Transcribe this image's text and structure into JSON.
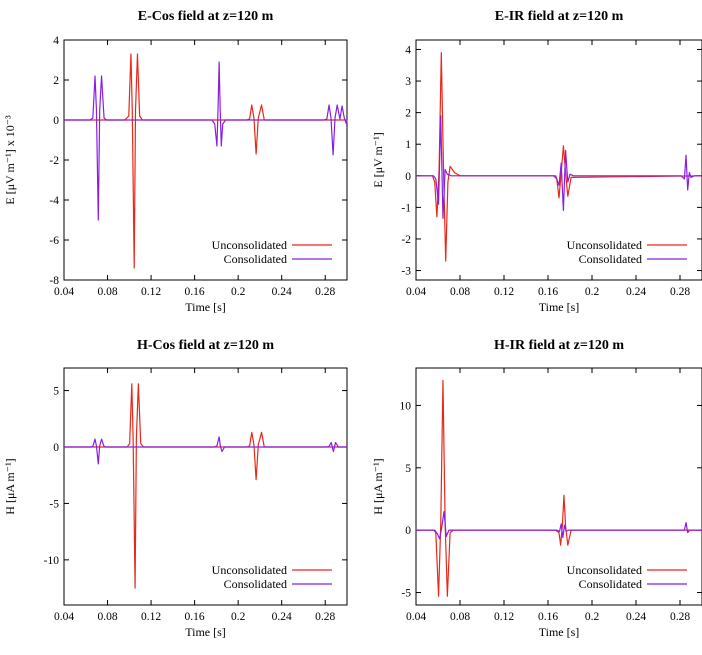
{
  "chart_data": [
    {
      "type": "line",
      "title": "E-Cos field at z=120 m",
      "xlabel": "Time [s]",
      "ylabel": "E [μV m⁻¹] x 10⁻³",
      "xlim": [
        0.04,
        0.3
      ],
      "ylim": [
        -8,
        4
      ],
      "xticks": [
        0.04,
        0.08,
        0.12,
        0.16,
        0.2,
        0.24,
        0.28
      ],
      "xtick_labels": [
        "0.04",
        "0.08",
        "0.12",
        "0.16",
        "0.2",
        "0.24",
        "0.28"
      ],
      "yticks": [
        -8,
        -6,
        -4,
        -2,
        0,
        2,
        4
      ],
      "ytick_labels": [
        "-8",
        "-6",
        "-4",
        "-2",
        "0",
        "2",
        "4"
      ],
      "grid": false,
      "legend": "bottom-right",
      "series": [
        {
          "name": "Unconsolidated",
          "color": "#e8281a",
          "x": [
            0.04,
            0.096,
            0.0995,
            0.1015,
            0.1027,
            0.1045,
            0.1057,
            0.1075,
            0.1095,
            0.112,
            0.208,
            0.2105,
            0.2125,
            0.2145,
            0.2165,
            0.2185,
            0.2215,
            0.224,
            0.3
          ],
          "y": [
            0,
            0,
            0.2,
            3.3,
            0.5,
            -7.4,
            0.5,
            3.3,
            0.2,
            0,
            0,
            0.05,
            0.75,
            0.1,
            -1.7,
            0.1,
            0.75,
            0,
            0
          ]
        },
        {
          "name": "Consolidated",
          "color": "#8a1ee0",
          "x": [
            0.04,
            0.064,
            0.0665,
            0.0685,
            0.0698,
            0.0715,
            0.0728,
            0.0745,
            0.0768,
            0.079,
            0.176,
            0.1785,
            0.1805,
            0.1815,
            0.1825,
            0.1835,
            0.1845,
            0.1858,
            0.1885,
            0.279,
            0.2815,
            0.2835,
            0.2853,
            0.2872,
            0.289,
            0.291,
            0.2935,
            0.2955,
            0.2975,
            0.2995,
            0.3
          ],
          "y": [
            0,
            0,
            0.1,
            2.2,
            0.5,
            -5.0,
            0.5,
            2.2,
            0.1,
            0,
            0,
            -0.2,
            -1.3,
            0.5,
            2.9,
            0.5,
            -1.3,
            -0.2,
            0,
            0,
            0.05,
            0.75,
            0.1,
            -1.75,
            0.1,
            0.75,
            0.05,
            0.7,
            0.1,
            -0.2,
            0
          ]
        }
      ]
    },
    {
      "type": "line",
      "title": "E-IR field at z=120 m",
      "xlabel": "Time [s]",
      "ylabel": "E [μV m⁻¹]",
      "xlim": [
        0.04,
        0.3
      ],
      "ylim": [
        -3.3,
        4.3
      ],
      "xticks": [
        0.04,
        0.08,
        0.12,
        0.16,
        0.2,
        0.24,
        0.28
      ],
      "xtick_labels": [
        "0.04",
        "0.08",
        "0.12",
        "0.16",
        "0.2",
        "0.24",
        "0.28"
      ],
      "yticks": [
        -3,
        -2,
        -1,
        0,
        1,
        2,
        3,
        4
      ],
      "ytick_labels": [
        "-3",
        "-2",
        "-1",
        "0",
        "1",
        "2",
        "3",
        "4"
      ],
      "grid": false,
      "legend": "bottom-right",
      "series": [
        {
          "name": "Unconsolidated",
          "color": "#e8281a",
          "x": [
            0.04,
            0.055,
            0.057,
            0.059,
            0.061,
            0.063,
            0.065,
            0.067,
            0.069,
            0.071,
            0.075,
            0.08,
            0.165,
            0.168,
            0.17,
            0.172,
            0.174,
            0.176,
            0.178,
            0.181,
            0.3
          ],
          "y": [
            0,
            0,
            -0.2,
            -1.3,
            0.2,
            3.9,
            0.2,
            -2.7,
            -0.2,
            0.3,
            0.1,
            0,
            0,
            -0.1,
            -0.7,
            0.1,
            0.95,
            0.1,
            -0.65,
            -0.05,
            0
          ]
        },
        {
          "name": "Consolidated",
          "color": "#8a1ee0",
          "x": [
            0.04,
            0.056,
            0.058,
            0.0605,
            0.0625,
            0.0645,
            0.0665,
            0.0685,
            0.072,
            0.167,
            0.17,
            0.172,
            0.174,
            0.176,
            0.178,
            0.18,
            0.183,
            0.281,
            0.284,
            0.2855,
            0.287,
            0.2885,
            0.29,
            0.293,
            0.3
          ],
          "y": [
            0,
            0,
            -0.1,
            -0.9,
            1.9,
            -1.35,
            0.2,
            0.05,
            0,
            0,
            -0.3,
            0.4,
            -1.1,
            0.8,
            -0.2,
            0.05,
            0,
            0,
            -0.1,
            0.65,
            -0.45,
            0.1,
            -0.05,
            0,
            0
          ]
        }
      ]
    },
    {
      "type": "line",
      "title": "H-Cos field at z=120 m",
      "xlabel": "Time [s]",
      "ylabel": "H [μA m⁻¹]",
      "xlim": [
        0.04,
        0.3
      ],
      "ylim": [
        -14,
        7
      ],
      "xticks": [
        0.04,
        0.08,
        0.12,
        0.16,
        0.2,
        0.24,
        0.28
      ],
      "xtick_labels": [
        "0.04",
        "0.08",
        "0.12",
        "0.16",
        "0.2",
        "0.24",
        "0.28"
      ],
      "yticks": [
        -10,
        -5,
        0,
        5
      ],
      "ytick_labels": [
        "-10",
        "-5",
        "0",
        "5"
      ],
      "grid": false,
      "legend": "bottom-right",
      "series": [
        {
          "name": "Unconsolidated",
          "color": "#e8281a",
          "x": [
            0.04,
            0.098,
            0.1003,
            0.1023,
            0.1035,
            0.1053,
            0.1065,
            0.1083,
            0.1105,
            0.113,
            0.208,
            0.2105,
            0.2125,
            0.2145,
            0.2165,
            0.2185,
            0.2215,
            0.224,
            0.3
          ],
          "y": [
            0,
            0,
            0.3,
            5.6,
            0.8,
            -12.5,
            0.8,
            5.6,
            0.3,
            0,
            0,
            0.1,
            1.3,
            0.2,
            -2.9,
            0.2,
            1.3,
            0,
            0
          ]
        },
        {
          "name": "Consolidated",
          "color": "#8a1ee0",
          "x": [
            0.04,
            0.064,
            0.0665,
            0.0685,
            0.0698,
            0.0715,
            0.0728,
            0.0745,
            0.0768,
            0.079,
            0.178,
            0.1805,
            0.1825,
            0.1838,
            0.1852,
            0.1875,
            0.281,
            0.2835,
            0.2855,
            0.2875,
            0.2895,
            0.292,
            0.3
          ],
          "y": [
            0,
            0,
            0.05,
            0.7,
            0.1,
            -1.5,
            0.1,
            0.7,
            0.05,
            0,
            0,
            0.1,
            0.9,
            0,
            -0.4,
            0,
            0,
            0.05,
            0.4,
            -0.4,
            0.4,
            0,
            0
          ]
        }
      ]
    },
    {
      "type": "line",
      "title": "H-IR field at z=120 m",
      "xlabel": "Time [s]",
      "ylabel": "H [μA m⁻¹]",
      "xlim": [
        0.04,
        0.3
      ],
      "ylim": [
        -6,
        13
      ],
      "xticks": [
        0.04,
        0.08,
        0.12,
        0.16,
        0.2,
        0.24,
        0.28
      ],
      "xtick_labels": [
        "0.04",
        "0.08",
        "0.12",
        "0.16",
        "0.2",
        "0.24",
        "0.28"
      ],
      "yticks": [
        -5,
        0,
        5,
        10
      ],
      "ytick_labels": [
        "-5",
        "0",
        "5",
        "10"
      ],
      "grid": false,
      "legend": "bottom-right",
      "series": [
        {
          "name": "Unconsolidated",
          "color": "#e8281a",
          "x": [
            0.04,
            0.056,
            0.058,
            0.0605,
            0.0625,
            0.0645,
            0.0665,
            0.0685,
            0.071,
            0.074,
            0.167,
            0.17,
            0.1715,
            0.173,
            0.1745,
            0.176,
            0.178,
            0.181,
            0.3
          ],
          "y": [
            0,
            0,
            -0.2,
            -5.3,
            0.5,
            12.0,
            0.5,
            -5.3,
            -0.2,
            0,
            0,
            -0.2,
            -1.2,
            0.3,
            2.8,
            0.3,
            -1.2,
            0,
            0
          ]
        },
        {
          "name": "Consolidated",
          "color": "#8a1ee0",
          "x": [
            0.04,
            0.057,
            0.0595,
            0.0615,
            0.0635,
            0.0655,
            0.0675,
            0.07,
            0.168,
            0.1705,
            0.172,
            0.1735,
            0.175,
            0.1765,
            0.1785,
            0.282,
            0.284,
            0.2855,
            0.287,
            0.289,
            0.3
          ],
          "y": [
            0,
            0,
            -0.3,
            -0.7,
            0.3,
            1.5,
            -0.5,
            0,
            0,
            -0.1,
            0.5,
            -0.6,
            0.4,
            -0.1,
            0,
            0,
            0,
            0.6,
            -0.2,
            0,
            0
          ]
        }
      ]
    }
  ]
}
